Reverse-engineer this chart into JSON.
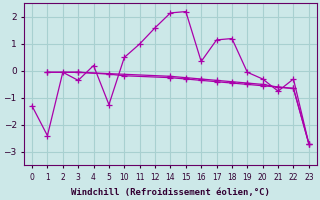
{
  "xlabel": "Windchill (Refroidissement éolien,°C)",
  "background_color": "#cce8e8",
  "grid_color": "#a8d0d0",
  "line_color": "#aa00aa",
  "ylim": [
    -3.5,
    2.5
  ],
  "yticks": [
    -3,
    -2,
    -1,
    0,
    1,
    2
  ],
  "xlim": [
    -0.3,
    23.8
  ],
  "xtick_positions": [
    0,
    1,
    2,
    3,
    4,
    5,
    10,
    11,
    12,
    14,
    15,
    16,
    17,
    18,
    19,
    20,
    21,
    22,
    23
  ],
  "xtick_labels": [
    "0",
    "1",
    "2",
    "3",
    "4",
    "5",
    "10",
    "11",
    "12",
    "14",
    "15",
    "16",
    "17",
    "18",
    "19",
    "20",
    "21",
    "22",
    "23"
  ],
  "series1": {
    "x": [
      0,
      1,
      2,
      3,
      4,
      5,
      10,
      11,
      12,
      14,
      15,
      16,
      17,
      18,
      19,
      20,
      21,
      22,
      23
    ],
    "y": [
      -1.3,
      -2.4,
      -0.05,
      -0.35,
      0.2,
      -1.25,
      0.5,
      1.0,
      1.6,
      2.15,
      2.2,
      0.35,
      1.15,
      1.2,
      -0.05,
      -0.3,
      -0.75,
      -0.3,
      -2.7
    ]
  },
  "series2": {
    "x": [
      1,
      3,
      5,
      14,
      15,
      16,
      17,
      18,
      19,
      20,
      21,
      22,
      23
    ],
    "y": [
      -0.05,
      -0.05,
      -0.1,
      -0.2,
      -0.25,
      -0.3,
      -0.35,
      -0.4,
      -0.45,
      -0.5,
      -0.6,
      -0.65,
      -2.7
    ]
  },
  "series3": {
    "x": [
      1,
      3,
      5,
      10,
      14,
      15,
      16,
      17,
      18,
      19,
      20,
      21,
      22,
      23
    ],
    "y": [
      -0.05,
      -0.05,
      -0.12,
      -0.18,
      -0.25,
      -0.3,
      -0.35,
      -0.4,
      -0.45,
      -0.5,
      -0.55,
      -0.6,
      -0.65,
      -2.7
    ]
  }
}
